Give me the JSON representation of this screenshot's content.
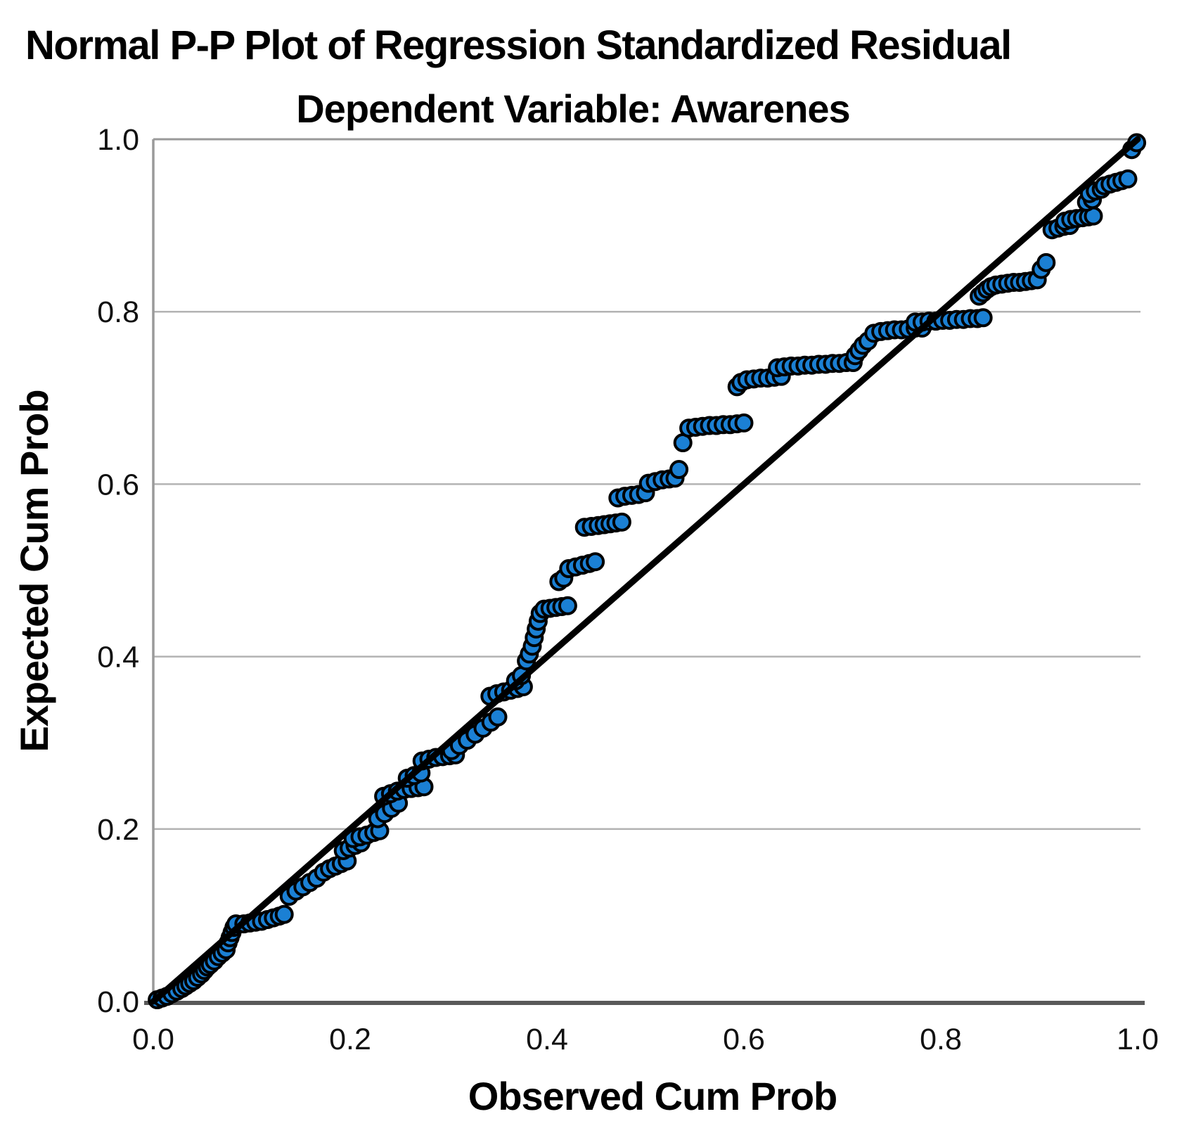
{
  "chart_data": {
    "type": "scatter",
    "title": "Normal P-P Plot of Regression Standardized Residual",
    "subtitle": "Dependent Variable: Awarenes",
    "xlabel": "Observed Cum Prob",
    "ylabel": "Expected Cum Prob",
    "xlim": [
      0.0,
      1.0
    ],
    "ylim": [
      0.0,
      1.0
    ],
    "x_ticks": [
      "0.0",
      "0.2",
      "0.4",
      "0.6",
      "0.8",
      "1.0"
    ],
    "x_tick_values": [
      0.0,
      0.2,
      0.4,
      0.6,
      0.8,
      1.0
    ],
    "y_ticks": [
      "0.0",
      "0.2",
      "0.4",
      "0.6",
      "0.8",
      "1.0"
    ],
    "y_tick_values": [
      0.0,
      0.2,
      0.4,
      0.6,
      0.8,
      1.0
    ],
    "gridlines_y": [
      0.2,
      0.4,
      0.6,
      0.8
    ],
    "grid_on": true,
    "legend": "none",
    "grid_color": "#b3b3b3",
    "frame_color": "#9a9a9a",
    "bottom_axis_color": "#5a5a5a",
    "point_color": "#1b80d4",
    "point_outline": "#000000",
    "reference_line": {
      "from": [
        0.0,
        0.0
      ],
      "to": [
        1.0,
        1.0
      ],
      "color": "#000000"
    },
    "points": [
      [
        0.004,
        0.002
      ],
      [
        0.009,
        0.004
      ],
      [
        0.014,
        0.006
      ],
      [
        0.019,
        0.009
      ],
      [
        0.024,
        0.012
      ],
      [
        0.029,
        0.015
      ],
      [
        0.033,
        0.018
      ],
      [
        0.037,
        0.021
      ],
      [
        0.041,
        0.024
      ],
      [
        0.045,
        0.028
      ],
      [
        0.049,
        0.032
      ],
      [
        0.052,
        0.036
      ],
      [
        0.055,
        0.04
      ],
      [
        0.058,
        0.043
      ],
      [
        0.062,
        0.047
      ],
      [
        0.066,
        0.052
      ],
      [
        0.07,
        0.056
      ],
      [
        0.074,
        0.06
      ],
      [
        0.076,
        0.068
      ],
      [
        0.078,
        0.074
      ],
      [
        0.08,
        0.08
      ],
      [
        0.082,
        0.086
      ],
      [
        0.084,
        0.09
      ],
      [
        0.092,
        0.09
      ],
      [
        0.098,
        0.091
      ],
      [
        0.104,
        0.092
      ],
      [
        0.11,
        0.093
      ],
      [
        0.116,
        0.095
      ],
      [
        0.122,
        0.097
      ],
      [
        0.128,
        0.099
      ],
      [
        0.133,
        0.101
      ],
      [
        0.138,
        0.122
      ],
      [
        0.145,
        0.128
      ],
      [
        0.152,
        0.133
      ],
      [
        0.159,
        0.138
      ],
      [
        0.166,
        0.143
      ],
      [
        0.173,
        0.15
      ],
      [
        0.179,
        0.154
      ],
      [
        0.185,
        0.157
      ],
      [
        0.191,
        0.16
      ],
      [
        0.197,
        0.163
      ],
      [
        0.193,
        0.175
      ],
      [
        0.199,
        0.178
      ],
      [
        0.205,
        0.181
      ],
      [
        0.211,
        0.184
      ],
      [
        0.203,
        0.189
      ],
      [
        0.21,
        0.191
      ],
      [
        0.217,
        0.193
      ],
      [
        0.224,
        0.196
      ],
      [
        0.23,
        0.198
      ],
      [
        0.228,
        0.212
      ],
      [
        0.235,
        0.218
      ],
      [
        0.242,
        0.224
      ],
      [
        0.249,
        0.23
      ],
      [
        0.234,
        0.238
      ],
      [
        0.241,
        0.241
      ],
      [
        0.248,
        0.244
      ],
      [
        0.255,
        0.246
      ],
      [
        0.262,
        0.247
      ],
      [
        0.269,
        0.248
      ],
      [
        0.275,
        0.249
      ],
      [
        0.258,
        0.259
      ],
      [
        0.265,
        0.262
      ],
      [
        0.272,
        0.265
      ],
      [
        0.273,
        0.279
      ],
      [
        0.28,
        0.281
      ],
      [
        0.287,
        0.283
      ],
      [
        0.294,
        0.284
      ],
      [
        0.301,
        0.285
      ],
      [
        0.307,
        0.286
      ],
      [
        0.303,
        0.291
      ],
      [
        0.311,
        0.297
      ],
      [
        0.319,
        0.303
      ],
      [
        0.327,
        0.31
      ],
      [
        0.335,
        0.317
      ],
      [
        0.343,
        0.324
      ],
      [
        0.35,
        0.33
      ],
      [
        0.342,
        0.354
      ],
      [
        0.349,
        0.357
      ],
      [
        0.356,
        0.359
      ],
      [
        0.363,
        0.361
      ],
      [
        0.37,
        0.363
      ],
      [
        0.376,
        0.365
      ],
      [
        0.368,
        0.372
      ],
      [
        0.374,
        0.378
      ],
      [
        0.379,
        0.395
      ],
      [
        0.382,
        0.403
      ],
      [
        0.385,
        0.412
      ],
      [
        0.387,
        0.422
      ],
      [
        0.389,
        0.432
      ],
      [
        0.391,
        0.441
      ],
      [
        0.393,
        0.45
      ],
      [
        0.397,
        0.455
      ],
      [
        0.403,
        0.456
      ],
      [
        0.409,
        0.457
      ],
      [
        0.415,
        0.458
      ],
      [
        0.421,
        0.459
      ],
      [
        0.412,
        0.487
      ],
      [
        0.417,
        0.491
      ],
      [
        0.422,
        0.502
      ],
      [
        0.429,
        0.504
      ],
      [
        0.436,
        0.506
      ],
      [
        0.443,
        0.508
      ],
      [
        0.449,
        0.51
      ],
      [
        0.438,
        0.55
      ],
      [
        0.445,
        0.551
      ],
      [
        0.452,
        0.552
      ],
      [
        0.458,
        0.553
      ],
      [
        0.464,
        0.554
      ],
      [
        0.47,
        0.555
      ],
      [
        0.476,
        0.556
      ],
      [
        0.472,
        0.584
      ],
      [
        0.479,
        0.586
      ],
      [
        0.486,
        0.587
      ],
      [
        0.493,
        0.588
      ],
      [
        0.5,
        0.59
      ],
      [
        0.503,
        0.601
      ],
      [
        0.51,
        0.603
      ],
      [
        0.517,
        0.605
      ],
      [
        0.524,
        0.606
      ],
      [
        0.53,
        0.607
      ],
      [
        0.534,
        0.617
      ],
      [
        0.538,
        0.648
      ],
      [
        0.544,
        0.665
      ],
      [
        0.551,
        0.666
      ],
      [
        0.558,
        0.667
      ],
      [
        0.565,
        0.668
      ],
      [
        0.572,
        0.668
      ],
      [
        0.579,
        0.669
      ],
      [
        0.586,
        0.669
      ],
      [
        0.593,
        0.67
      ],
      [
        0.6,
        0.671
      ],
      [
        0.593,
        0.713
      ],
      [
        0.597,
        0.718
      ],
      [
        0.603,
        0.721
      ],
      [
        0.61,
        0.722
      ],
      [
        0.617,
        0.723
      ],
      [
        0.624,
        0.723
      ],
      [
        0.631,
        0.724
      ],
      [
        0.638,
        0.725
      ],
      [
        0.634,
        0.735
      ],
      [
        0.641,
        0.736
      ],
      [
        0.648,
        0.737
      ],
      [
        0.655,
        0.737
      ],
      [
        0.662,
        0.738
      ],
      [
        0.669,
        0.738
      ],
      [
        0.676,
        0.739
      ],
      [
        0.683,
        0.739
      ],
      [
        0.69,
        0.74
      ],
      [
        0.697,
        0.74
      ],
      [
        0.704,
        0.741
      ],
      [
        0.711,
        0.741
      ],
      [
        0.713,
        0.749
      ],
      [
        0.717,
        0.755
      ],
      [
        0.721,
        0.761
      ],
      [
        0.726,
        0.766
      ],
      [
        0.732,
        0.775
      ],
      [
        0.739,
        0.777
      ],
      [
        0.746,
        0.778
      ],
      [
        0.753,
        0.779
      ],
      [
        0.76,
        0.779
      ],
      [
        0.767,
        0.78
      ],
      [
        0.774,
        0.781
      ],
      [
        0.781,
        0.781
      ],
      [
        0.774,
        0.788
      ],
      [
        0.781,
        0.788
      ],
      [
        0.788,
        0.789
      ],
      [
        0.795,
        0.789
      ],
      [
        0.802,
        0.79
      ],
      [
        0.809,
        0.79
      ],
      [
        0.816,
        0.791
      ],
      [
        0.823,
        0.791
      ],
      [
        0.83,
        0.792
      ],
      [
        0.837,
        0.792
      ],
      [
        0.843,
        0.793
      ],
      [
        0.839,
        0.818
      ],
      [
        0.843,
        0.822
      ],
      [
        0.847,
        0.826
      ],
      [
        0.851,
        0.829
      ],
      [
        0.856,
        0.831
      ],
      [
        0.862,
        0.832
      ],
      [
        0.868,
        0.833
      ],
      [
        0.874,
        0.834
      ],
      [
        0.88,
        0.834
      ],
      [
        0.886,
        0.835
      ],
      [
        0.892,
        0.836
      ],
      [
        0.898,
        0.837
      ],
      [
        0.902,
        0.849
      ],
      [
        0.907,
        0.857
      ],
      [
        0.913,
        0.895
      ],
      [
        0.919,
        0.897
      ],
      [
        0.925,
        0.899
      ],
      [
        0.931,
        0.9
      ],
      [
        0.926,
        0.905
      ],
      [
        0.932,
        0.907
      ],
      [
        0.938,
        0.908
      ],
      [
        0.944,
        0.909
      ],
      [
        0.95,
        0.91
      ],
      [
        0.955,
        0.911
      ],
      [
        0.948,
        0.927
      ],
      [
        0.954,
        0.93
      ],
      [
        0.951,
        0.937
      ],
      [
        0.957,
        0.94
      ],
      [
        0.963,
        0.942
      ],
      [
        0.966,
        0.946
      ],
      [
        0.972,
        0.948
      ],
      [
        0.978,
        0.95
      ],
      [
        0.984,
        0.952
      ],
      [
        0.99,
        0.954
      ],
      [
        0.994,
        0.988
      ],
      [
        0.999,
        0.996
      ]
    ]
  }
}
